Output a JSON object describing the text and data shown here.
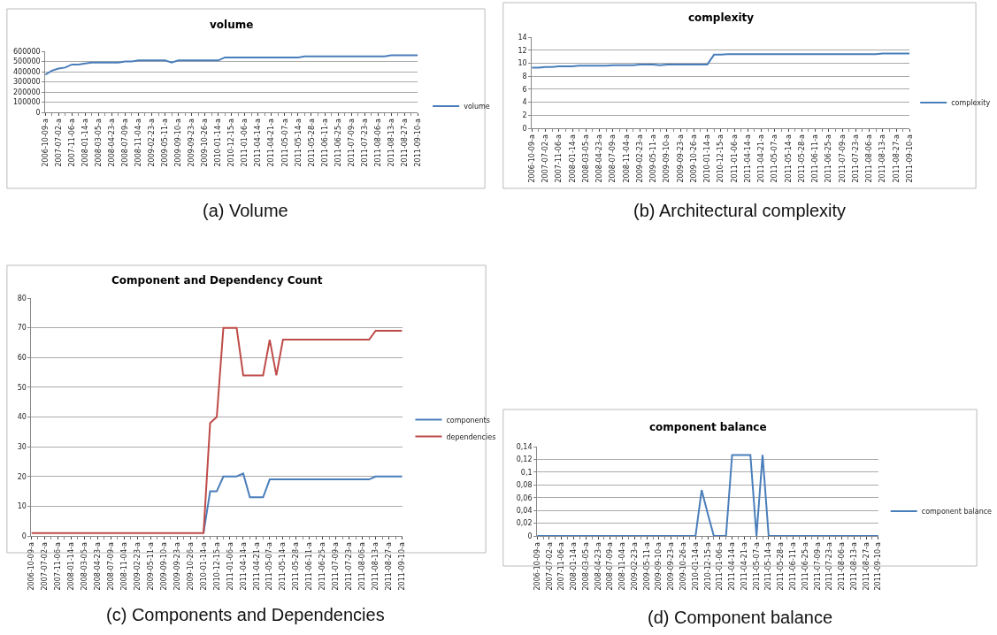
{
  "chart_data": [
    {
      "type": "line",
      "title": "volume",
      "annotations": [
        "(a) Volume"
      ],
      "categories": [
        "2006-10-09-a",
        null,
        "2007-07-02-a",
        null,
        "2007-11-06-a",
        null,
        "2008-01-14-a",
        null,
        "2008-03-05-a",
        null,
        "2008-04-23-a",
        null,
        "2008-07-09-a",
        null,
        "2008-11-04-a",
        null,
        "2009-02-23-a",
        null,
        "2009-05-11-a",
        null,
        "2009-09-10-a",
        null,
        "2009-09-23-a",
        null,
        "2009-10-26-a",
        null,
        "2010-01-14-a",
        null,
        "2010-12-15-a",
        null,
        "2011-01-06-a",
        null,
        "2011-04-14-a",
        null,
        "2011-04-21-a",
        null,
        "2011-05-07-a",
        null,
        "2011-05-14-a",
        null,
        "2011-05-28-a",
        null,
        "2011-06-11-a",
        null,
        "2011-06-25-a",
        null,
        "2011-07-09-a",
        null,
        "2011-07-23-a",
        null,
        "2011-08-06-a",
        null,
        "2011-08-13-a",
        null,
        "2011-08-27-a",
        null,
        "2011-09-10-a"
      ],
      "series": [
        {
          "name": "volume",
          "color": "#4a7ebb",
          "values": [
            370000,
            410000,
            430000,
            440000,
            470000,
            470000,
            480000,
            490000,
            490000,
            490000,
            490000,
            490000,
            500000,
            500000,
            510000,
            510000,
            510000,
            510000,
            510000,
            490000,
            510000,
            510000,
            510000,
            510000,
            510000,
            510000,
            510000,
            540000,
            540000,
            540000,
            540000,
            540000,
            540000,
            540000,
            540000,
            540000,
            540000,
            540000,
            540000,
            550000,
            550000,
            550000,
            550000,
            550000,
            550000,
            550000,
            550000,
            550000,
            550000,
            550000,
            550000,
            550000,
            560000,
            560000,
            560000,
            560000,
            560000
          ]
        }
      ],
      "ylim": [
        0,
        600000
      ],
      "yticks": [
        0,
        100000,
        200000,
        300000,
        400000,
        500000,
        600000
      ],
      "grid": "y",
      "legend": "right"
    },
    {
      "type": "line",
      "title": "complexity",
      "annotations": [
        "(b) Architectural complexity"
      ],
      "categories": [
        "2006-10-09-a",
        null,
        "2007-07-02-a",
        null,
        "2007-11-06-a",
        null,
        "2008-01-14-a",
        null,
        "2008-03-05-a",
        null,
        "2008-04-23-a",
        null,
        "2008-07-09-a",
        null,
        "2008-11-04-a",
        null,
        "2009-02-23-a",
        null,
        "2009-05-11-a",
        null,
        "2009-09-10-a",
        null,
        "2009-09-23-a",
        null,
        "2009-10-26-a",
        null,
        "2010-01-14-a",
        null,
        "2010-12-15-a",
        null,
        "2011-01-06-a",
        null,
        "2011-04-14-a",
        null,
        "2011-04-21-a",
        null,
        "2011-05-07-a",
        null,
        "2011-05-14-a",
        null,
        "2011-05-28-a",
        null,
        "2011-06-11-a",
        null,
        "2011-06-25-a",
        null,
        "2011-07-09-a",
        null,
        "2011-07-23-a",
        null,
        "2011-08-06-a",
        null,
        "2011-08-13-a",
        null,
        "2011-08-27-a",
        null,
        "2011-09-10-a"
      ],
      "series": [
        {
          "name": "complexity",
          "color": "#4a7ebb",
          "values": [
            9.3,
            9.3,
            9.4,
            9.4,
            9.5,
            9.5,
            9.5,
            9.6,
            9.6,
            9.6,
            9.6,
            9.6,
            9.7,
            9.7,
            9.7,
            9.7,
            9.8,
            9.8,
            9.8,
            9.7,
            9.8,
            9.8,
            9.8,
            9.8,
            9.8,
            9.8,
            9.8,
            11.3,
            11.3,
            11.4,
            11.4,
            11.4,
            11.4,
            11.4,
            11.4,
            11.4,
            11.4,
            11.4,
            11.4,
            11.4,
            11.4,
            11.4,
            11.4,
            11.4,
            11.4,
            11.4,
            11.4,
            11.4,
            11.4,
            11.4,
            11.4,
            11.4,
            11.5,
            11.5,
            11.5,
            11.5,
            11.5
          ]
        }
      ],
      "ylim": [
        0,
        14
      ],
      "yticks": [
        0,
        2,
        4,
        6,
        8,
        10,
        12,
        14
      ],
      "grid": "y",
      "legend": "right"
    },
    {
      "type": "line",
      "title": "Component and Dependency Count",
      "annotations": [
        "(c) Components and Dependencies"
      ],
      "categories": [
        "2006-10-09-a",
        null,
        "2007-07-02-a",
        null,
        "2007-11-06-a",
        null,
        "2008-01-14-a",
        null,
        "2008-03-05-a",
        null,
        "2008-04-23-a",
        null,
        "2008-07-09-a",
        null,
        "2008-11-04-a",
        null,
        "2009-02-23-a",
        null,
        "2009-05-11-a",
        null,
        "2009-09-10-a",
        null,
        "2009-09-23-a",
        null,
        "2009-10-26-a",
        null,
        "2010-01-14-a",
        null,
        "2010-12-15-a",
        null,
        "2011-01-06-a",
        null,
        "2011-04-14-a",
        null,
        "2011-04-21-a",
        null,
        "2011-05-07-a",
        null,
        "2011-05-14-a",
        null,
        "2011-05-28-a",
        null,
        "2011-06-11-a",
        null,
        "2011-06-25-a",
        null,
        "2011-07-09-a",
        null,
        "2011-07-23-a",
        null,
        "2011-08-06-a",
        null,
        "2011-08-13-a",
        null,
        "2011-08-27-a",
        null,
        "2011-09-10-a"
      ],
      "series": [
        {
          "name": "components",
          "color": "#4a7ebb",
          "values": [
            null,
            null,
            null,
            null,
            null,
            null,
            null,
            null,
            null,
            null,
            null,
            null,
            null,
            null,
            null,
            null,
            null,
            null,
            null,
            null,
            null,
            null,
            null,
            null,
            null,
            null,
            1,
            15,
            15,
            20,
            20,
            20,
            21,
            13,
            13,
            13,
            19,
            19,
            19,
            19,
            19,
            19,
            19,
            19,
            19,
            19,
            19,
            19,
            19,
            19,
            19,
            19,
            20,
            20,
            20,
            20,
            20
          ]
        },
        {
          "name": "dependencies",
          "color": "#be4b48",
          "values": [
            1,
            1,
            1,
            1,
            1,
            1,
            1,
            1,
            1,
            1,
            1,
            1,
            1,
            1,
            1,
            1,
            1,
            1,
            1,
            1,
            1,
            1,
            1,
            1,
            1,
            1,
            1,
            38,
            40,
            70,
            70,
            70,
            54,
            54,
            54,
            54,
            66,
            54,
            66,
            66,
            66,
            66,
            66,
            66,
            66,
            66,
            66,
            66,
            66,
            66,
            66,
            66,
            69,
            69,
            69,
            69,
            69
          ]
        }
      ],
      "ylim": [
        0,
        80
      ],
      "yticks": [
        0,
        10,
        20,
        30,
        40,
        50,
        60,
        70,
        80
      ],
      "grid": "y",
      "legend": "right"
    },
    {
      "type": "line",
      "title": "component balance",
      "annotations": [
        "(d) Component balance"
      ],
      "categories": [
        "2006-10-09-a",
        null,
        "2007-07-02-a",
        null,
        "2007-11-06-a",
        null,
        "2008-01-14-a",
        null,
        "2008-03-05-a",
        null,
        "2008-04-23-a",
        null,
        "2008-07-09-a",
        null,
        "2008-11-04-a",
        null,
        "2009-02-23-a",
        null,
        "2009-05-11-a",
        null,
        "2009-09-10-a",
        null,
        "2009-09-23-a",
        null,
        "2009-10-26-a",
        null,
        "2010-01-14-a",
        null,
        "2010-12-15-a",
        null,
        "2011-01-06-a",
        null,
        "2011-04-14-a",
        null,
        "2011-04-21-a",
        null,
        "2011-05-07-a",
        null,
        "2011-05-14-a",
        null,
        "2011-05-28-a",
        null,
        "2011-06-11-a",
        null,
        "2011-06-25-a",
        null,
        "2011-07-09-a",
        null,
        "2011-07-23-a",
        null,
        "2011-08-06-a",
        null,
        "2011-08-13-a",
        null,
        "2011-08-27-a",
        null,
        "2011-09-10-a"
      ],
      "series": [
        {
          "name": "component balance",
          "color": "#4a7ebb",
          "values": [
            0,
            0,
            0,
            0,
            0,
            0,
            0,
            0,
            0,
            0,
            0,
            0,
            0,
            0,
            0,
            0,
            0,
            0,
            0,
            0,
            0,
            0,
            0,
            0,
            0,
            0,
            0,
            0.072,
            0.035,
            0,
            0,
            0,
            0.127,
            0.127,
            0.127,
            0.127,
            0,
            0.127,
            0,
            0,
            0,
            0,
            0,
            0,
            0,
            0,
            0,
            0,
            0,
            0,
            0,
            0,
            0,
            0,
            0,
            0,
            0
          ]
        }
      ],
      "ylim": [
        0,
        0.14
      ],
      "yticks": [
        0,
        {
          "value": 0.02,
          "label": "0,02"
        },
        {
          "value": 0.04,
          "label": "0,04"
        },
        {
          "value": 0.06,
          "label": "0,06"
        },
        {
          "value": 0.08,
          "label": "0,08"
        },
        {
          "value": 0.1,
          "label": "0,1"
        },
        {
          "value": 0.12,
          "label": "0,12"
        },
        {
          "value": 0.14,
          "label": "0,14"
        }
      ],
      "grid": "y",
      "legend": "right"
    }
  ]
}
